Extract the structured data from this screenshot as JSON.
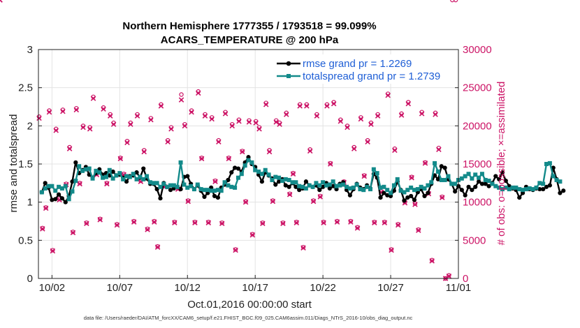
{
  "chart_data": {
    "type": "line",
    "title": "Northern Hemisphere 1777355 / 1793518 = 99.099%",
    "subtitle": "ACARS_TEMPERATURE @ 200 hPa",
    "xlabel": "Oct.01,2016 00:00:00 start",
    "ylabel": "rmse and totalspread",
    "ylabel_right": "# of obs: o=possible; ×=assimilated",
    "footnote": "data file: /Users/raeder/DAI/ATM_forcXX/CAM6_setup/f.e21.FHIST_BGC.f09_025.CAM6assim.011/Diags_NTrS_2016-10/obs_diag_output.nc",
    "x_tick_labels": [
      "10/02",
      "10/07",
      "10/12",
      "10/17",
      "10/22",
      "10/27",
      "11/01"
    ],
    "x_tick_days": [
      1,
      6,
      11,
      16,
      21,
      26,
      31
    ],
    "xlim_days": [
      0,
      31
    ],
    "ylim": [
      0,
      3
    ],
    "y_ticks": [
      0,
      0.5,
      1,
      1.5,
      2,
      2.5,
      3
    ],
    "ylim_right": [
      0,
      30000
    ],
    "y_ticks_right": [
      0,
      5000,
      10000,
      15000,
      20000,
      25000,
      30000
    ],
    "grid": true,
    "legend_placement": "top-right",
    "colors": {
      "rmse": "#000000",
      "totalspread": "#138a8a",
      "obs": "#cc1466",
      "legend_text": "#1f5fd6",
      "grid": "#e3e3e3"
    },
    "legend": [
      {
        "label": "rmse grand pr = 1.2269",
        "series": "rmse"
      },
      {
        "label": "totalspread grand pr = 1.2739",
        "series": "totalspread"
      }
    ],
    "x_step_days": 0.25,
    "series": [
      {
        "name": "rmse",
        "values": [
          1.13,
          1.25,
          1.19,
          1.03,
          1.04,
          1.1,
          1.05,
          1.0,
          1.08,
          1.27,
          1.52,
          1.38,
          1.42,
          1.46,
          1.36,
          1.32,
          1.38,
          1.43,
          1.36,
          1.38,
          1.35,
          1.4,
          1.35,
          1.36,
          1.32,
          1.27,
          1.34,
          1.35,
          1.39,
          1.32,
          1.44,
          1.31,
          1.24,
          1.24,
          1.17,
          1.05,
          1.25,
          1.2,
          1.16,
          1.18,
          1.2,
          1.17,
          1.33,
          1.34,
          1.24,
          1.17,
          1.22,
          1.15,
          1.07,
          1.12,
          1.19,
          1.08,
          1.06,
          1.19,
          1.23,
          1.29,
          1.39,
          1.45,
          1.44,
          1.4,
          1.52,
          1.59,
          1.5,
          1.46,
          1.36,
          1.27,
          1.39,
          1.35,
          1.31,
          1.23,
          1.27,
          1.3,
          1.22,
          1.2,
          1.25,
          1.2,
          1.16,
          1.18,
          1.27,
          1.22,
          1.2,
          1.22,
          1.16,
          1.2,
          1.25,
          1.18,
          1.21,
          1.17,
          1.24,
          1.26,
          1.16,
          1.09,
          1.17,
          1.24,
          1.19,
          1.17,
          1.22,
          1.18,
          1.37,
          1.32,
          1.06,
          1.12,
          1.09,
          1.08,
          1.15,
          1.27,
          1.16,
          1.02,
          1.06,
          1.08,
          1.03,
          1.13,
          1.17,
          1.08,
          1.12,
          1.24,
          1.35,
          1.3,
          1.47,
          1.45,
          1.3,
          1.24,
          1.14,
          1.21,
          1.16,
          1.09,
          1.2,
          1.16,
          1.2,
          1.27,
          1.24,
          1.24,
          1.21,
          1.25,
          1.34,
          1.3,
          1.39,
          1.28,
          1.21,
          1.18,
          1.16,
          1.06,
          1.12,
          1.2,
          1.17,
          1.16,
          1.18,
          1.17,
          1.17,
          1.2,
          1.22,
          1.45,
          1.3,
          1.12,
          1.15
        ],
        "note": "values every 6 hours starting Oct.01 06:00"
      },
      {
        "name": "totalspread",
        "values": [
          1.13,
          1.18,
          1.21,
          1.21,
          1.15,
          1.2,
          1.18,
          1.21,
          1.04,
          1.14,
          1.28,
          1.47,
          1.41,
          1.43,
          1.44,
          1.31,
          1.41,
          1.39,
          1.32,
          1.33,
          1.42,
          1.31,
          1.35,
          1.38,
          1.3,
          1.34,
          1.33,
          1.37,
          1.3,
          1.33,
          1.3,
          1.34,
          1.26,
          1.25,
          1.25,
          1.2,
          1.24,
          1.2,
          1.22,
          1.22,
          1.2,
          1.52,
          1.23,
          1.19,
          1.21,
          1.17,
          1.23,
          1.17,
          1.16,
          1.16,
          1.15,
          1.15,
          1.16,
          1.15,
          1.26,
          1.22,
          1.2,
          1.19,
          1.32,
          1.37,
          1.48,
          1.55,
          1.52,
          1.42,
          1.4,
          1.37,
          1.42,
          1.36,
          1.29,
          1.33,
          1.32,
          1.28,
          1.3,
          1.29,
          1.26,
          1.26,
          1.21,
          1.2,
          1.18,
          1.22,
          1.2,
          1.25,
          1.22,
          1.26,
          1.22,
          1.23,
          1.27,
          1.21,
          1.22,
          1.23,
          1.2,
          1.18,
          1.19,
          1.23,
          1.17,
          1.16,
          1.2,
          1.17,
          1.43,
          1.38,
          1.19,
          1.2,
          1.16,
          1.12,
          1.22,
          1.3,
          1.15,
          1.13,
          1.16,
          1.19,
          1.16,
          1.17,
          1.2,
          1.18,
          1.22,
          1.26,
          1.51,
          1.4,
          1.29,
          1.29,
          1.34,
          1.24,
          1.24,
          1.29,
          1.31,
          1.34,
          1.37,
          1.31,
          1.36,
          1.32,
          1.37,
          1.29,
          1.28,
          1.24,
          1.21,
          1.19,
          1.17,
          1.19,
          1.17,
          1.19,
          1.19,
          1.17,
          1.16,
          1.17,
          1.18,
          1.17,
          1.19,
          1.25,
          1.24,
          1.5,
          1.51,
          1.34,
          1.29,
          1.27
        ]
      },
      {
        "name": "obs_count",
        "axis": "right",
        "days": [
          0.05,
          0.3,
          0.55,
          0.8,
          1.05,
          1.3,
          1.55,
          1.8,
          2.05,
          2.3,
          2.55,
          2.8,
          3.05,
          3.3,
          3.55,
          3.8,
          4.05,
          4.3,
          4.55,
          4.8,
          5.05,
          5.3,
          5.55,
          5.8,
          6.05,
          6.3,
          6.55,
          6.8,
          7.05,
          7.3,
          7.55,
          7.8,
          8.05,
          8.3,
          8.55,
          8.8,
          9.05,
          9.3,
          9.55,
          9.8,
          10.05,
          10.3,
          10.55,
          10.8,
          11.05,
          11.3,
          11.55,
          11.8,
          12.05,
          12.3,
          12.55,
          12.8,
          13.05,
          13.3,
          13.55,
          13.8,
          14.05,
          14.3,
          14.55,
          14.8,
          15.05,
          15.3,
          15.55,
          15.8,
          16.05,
          16.3,
          16.55,
          16.8,
          17.05,
          17.3,
          17.55,
          17.8,
          18.05,
          18.3,
          18.55,
          18.8,
          19.05,
          19.3,
          19.55,
          19.8,
          20.05,
          20.3,
          20.55,
          20.8,
          21.05,
          21.3,
          21.55,
          21.8,
          22.05,
          22.3,
          22.55,
          22.8,
          23.05,
          23.3,
          23.55,
          23.8,
          24.05,
          24.3,
          24.55,
          24.8,
          25.05,
          25.3,
          25.55,
          25.8,
          26.05,
          26.3,
          26.55,
          26.8,
          27.05,
          27.3,
          27.55,
          27.8,
          28.05,
          28.3,
          28.55,
          28.8,
          29.05,
          29.3,
          29.55,
          29.8,
          30.05,
          30.3,
          30.55,
          30.8
        ],
        "possible": [
          21200,
          6600,
          9300,
          22000,
          3700,
          19600,
          10400,
          22100,
          12400,
          17200,
          6100,
          22300,
          12500,
          20000,
          7300,
          19800,
          23800,
          13700,
          7800,
          22400,
          12500,
          21500,
          20400,
          7100,
          15800,
          13700,
          18000,
          20400,
          7500,
          21500,
          12800,
          16800,
          6500,
          21000,
          7500,
          4200,
          22800,
          12100,
          18100,
          19800,
          7400,
          11800,
          24100,
          20200,
          10200,
          22000,
          7400,
          24500,
          15800,
          21500,
          7400,
          21100,
          12800,
          18100,
          7300,
          21800,
          15800,
          20200,
          3800,
          20800,
          16700,
          10100,
          20700,
          5800,
          20600,
          19800,
          7300,
          23000,
          16800,
          10200,
          20700,
          20400,
          7300,
          21700,
          11100,
          13800,
          7400,
          22800,
          4100,
          22800,
          16900,
          10200,
          21500,
          10800,
          7400,
          22800,
          15100,
          23100,
          7500,
          20800,
          12700,
          20000,
          7500,
          17200,
          6700,
          21100,
          13500,
          18100,
          20400,
          7400,
          21500,
          11400,
          7400,
          24200,
          3800,
          17000,
          7100,
          21600,
          10000,
          23100,
          13300,
          9800,
          6400,
          21800,
          15200,
          11200,
          2400,
          21700,
          17100,
          10700,
          0,
          400
        ],
        "assimilated": [
          21000,
          6500,
          9200,
          21800,
          3600,
          19400,
          10300,
          21900,
          12300,
          17000,
          6000,
          22100,
          12400,
          19800,
          7200,
          19600,
          23600,
          13600,
          7700,
          22200,
          12400,
          21300,
          20200,
          7000,
          15700,
          13600,
          17800,
          20200,
          7400,
          21300,
          12700,
          16600,
          6400,
          20800,
          7400,
          4100,
          22600,
          12000,
          17900,
          19600,
          7300,
          11700,
          23400,
          20000,
          10100,
          21800,
          7300,
          24300,
          15700,
          21300,
          7300,
          20900,
          12700,
          17900,
          7200,
          21600,
          15700,
          20000,
          3700,
          20600,
          16600,
          10000,
          20500,
          5700,
          20400,
          19600,
          7200,
          22800,
          16600,
          10100,
          20500,
          20200,
          7200,
          21500,
          11000,
          13700,
          7300,
          22600,
          4000,
          22600,
          16700,
          10100,
          21300,
          10700,
          7300,
          22600,
          15000,
          22900,
          7400,
          20600,
          12600,
          19800,
          7400,
          17000,
          6600,
          20900,
          13400,
          17900,
          20200,
          7300,
          21300,
          11300,
          7300,
          24000,
          3700,
          16800,
          7000,
          21400,
          9900,
          22900,
          13200,
          9700,
          6300,
          21600,
          15100,
          11100,
          2300,
          21500,
          16900,
          10600,
          0,
          300
        ]
      }
    ]
  }
}
